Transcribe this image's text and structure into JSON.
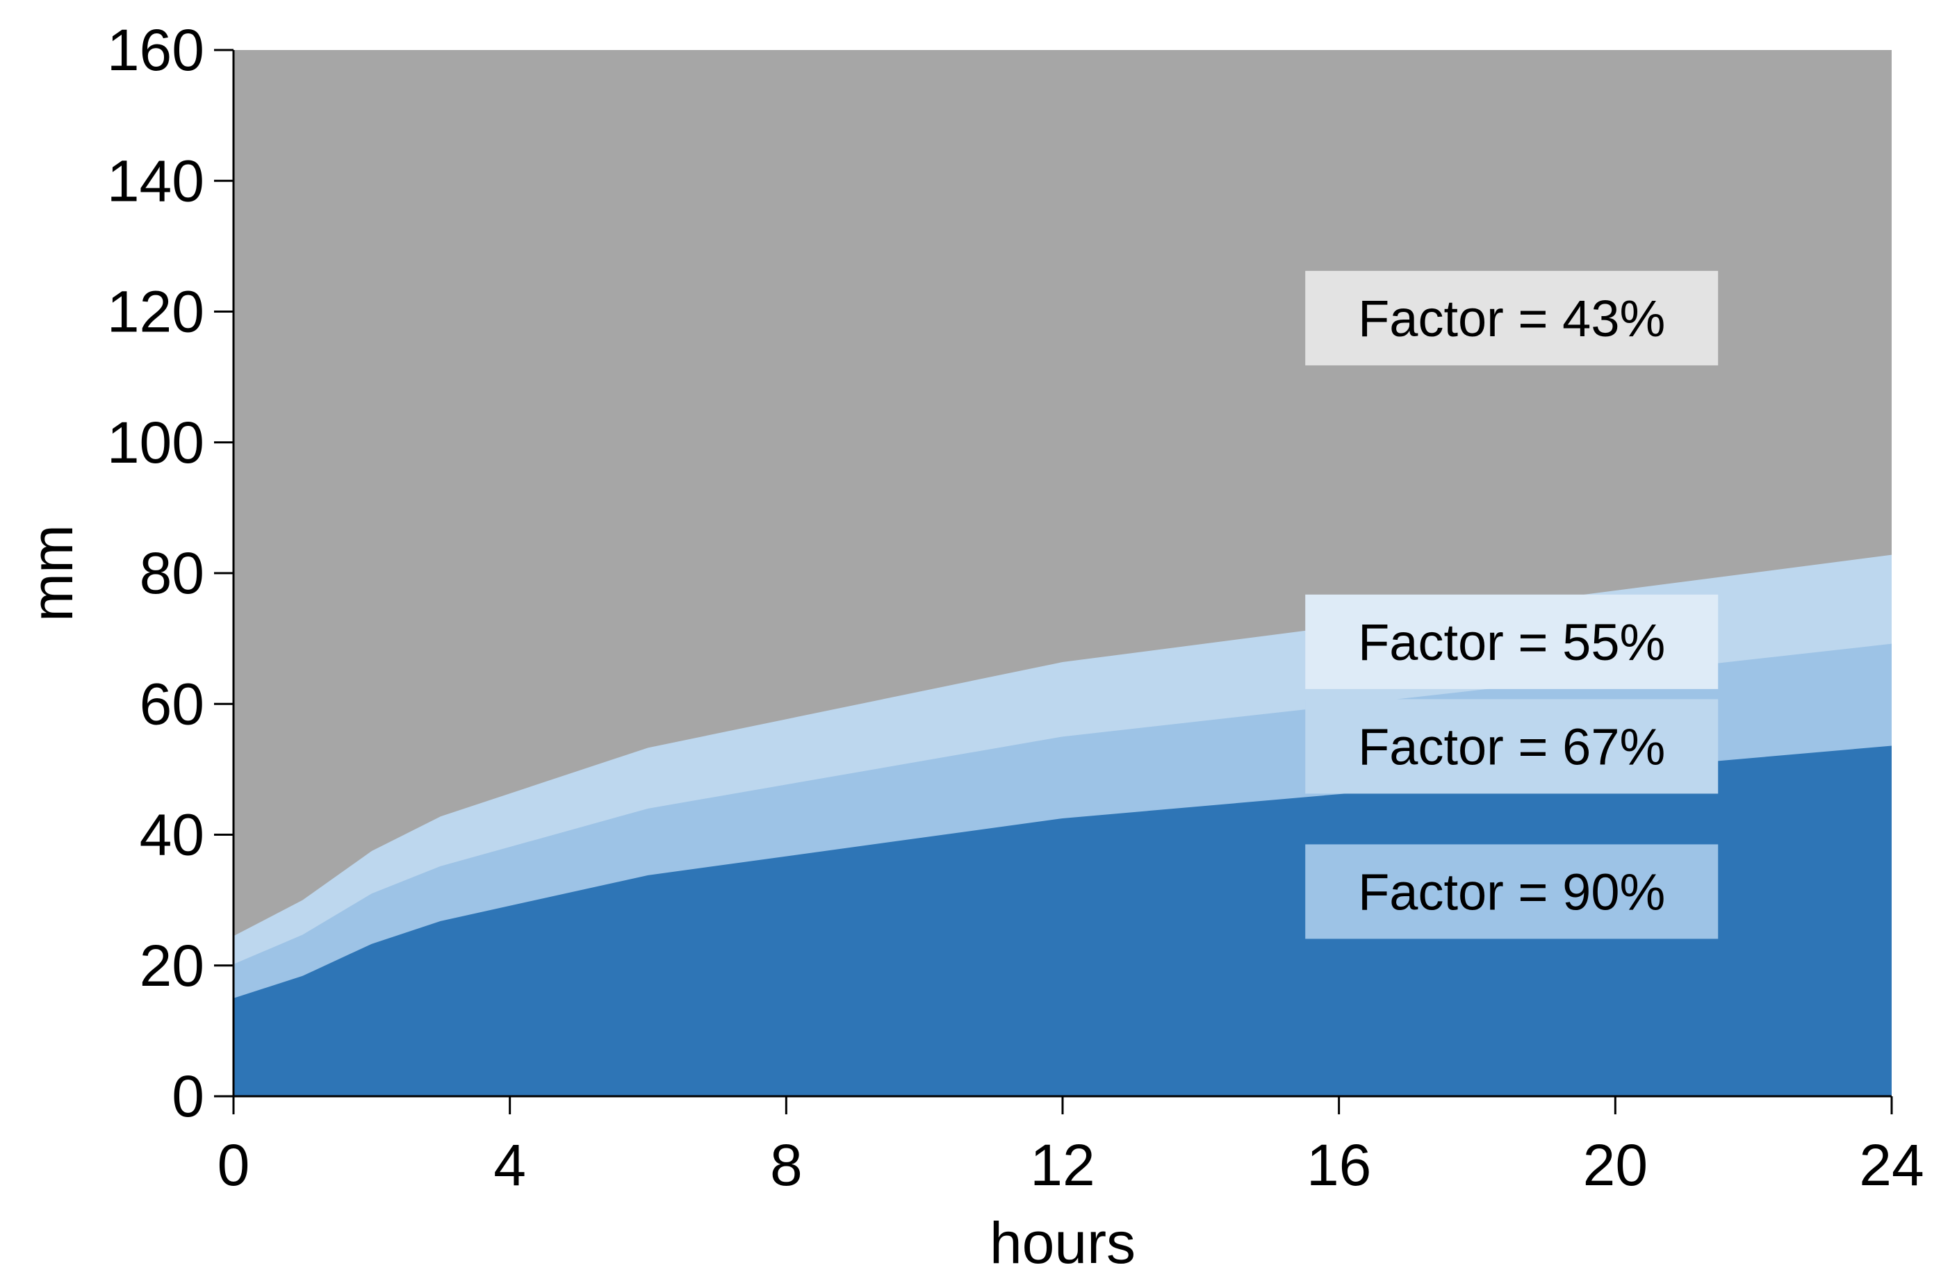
{
  "chart_data": {
    "type": "area",
    "title": "",
    "xlabel": "hours",
    "ylabel": "mm",
    "xlim": [
      0,
      24
    ],
    "ylim": [
      0,
      160
    ],
    "xticks": [
      0,
      4,
      8,
      12,
      16,
      20,
      24
    ],
    "yticks": [
      0,
      20,
      40,
      60,
      80,
      100,
      120,
      140,
      160
    ],
    "grid": false,
    "legend": "none",
    "x": [
      0,
      1,
      2,
      3,
      6,
      12,
      24
    ],
    "series": [
      {
        "values": [
          160,
          160,
          160,
          160,
          160,
          160,
          160
        ],
        "color": "#a6a6a6"
      },
      {
        "values": [
          24.5,
          30,
          37.5,
          42.8,
          53.3,
          66.4,
          82.8
        ],
        "color": "#bdd7ee"
      },
      {
        "values": [
          20.2,
          24.7,
          31,
          35.2,
          44,
          55,
          69.2
        ],
        "color": "#9dc3e6"
      },
      {
        "values": [
          15,
          18.4,
          23.3,
          26.8,
          33.8,
          42.5,
          53.6
        ],
        "color": "#2e75b6"
      }
    ],
    "annotations": [
      {
        "text": "Factor = 43%",
        "x": 18.5,
        "y": 119,
        "bg": "#e3e3e3"
      },
      {
        "text": "Factor = 55%",
        "x": 18.5,
        "y": 69.5,
        "bg": "#deebf7"
      },
      {
        "text": "Factor = 67%",
        "x": 18.5,
        "y": 53.5,
        "bg": "#bdd7ee"
      },
      {
        "text": "Factor = 90%",
        "x": 18.5,
        "y": 31.3,
        "bg": "#9dc3e6"
      }
    ]
  }
}
